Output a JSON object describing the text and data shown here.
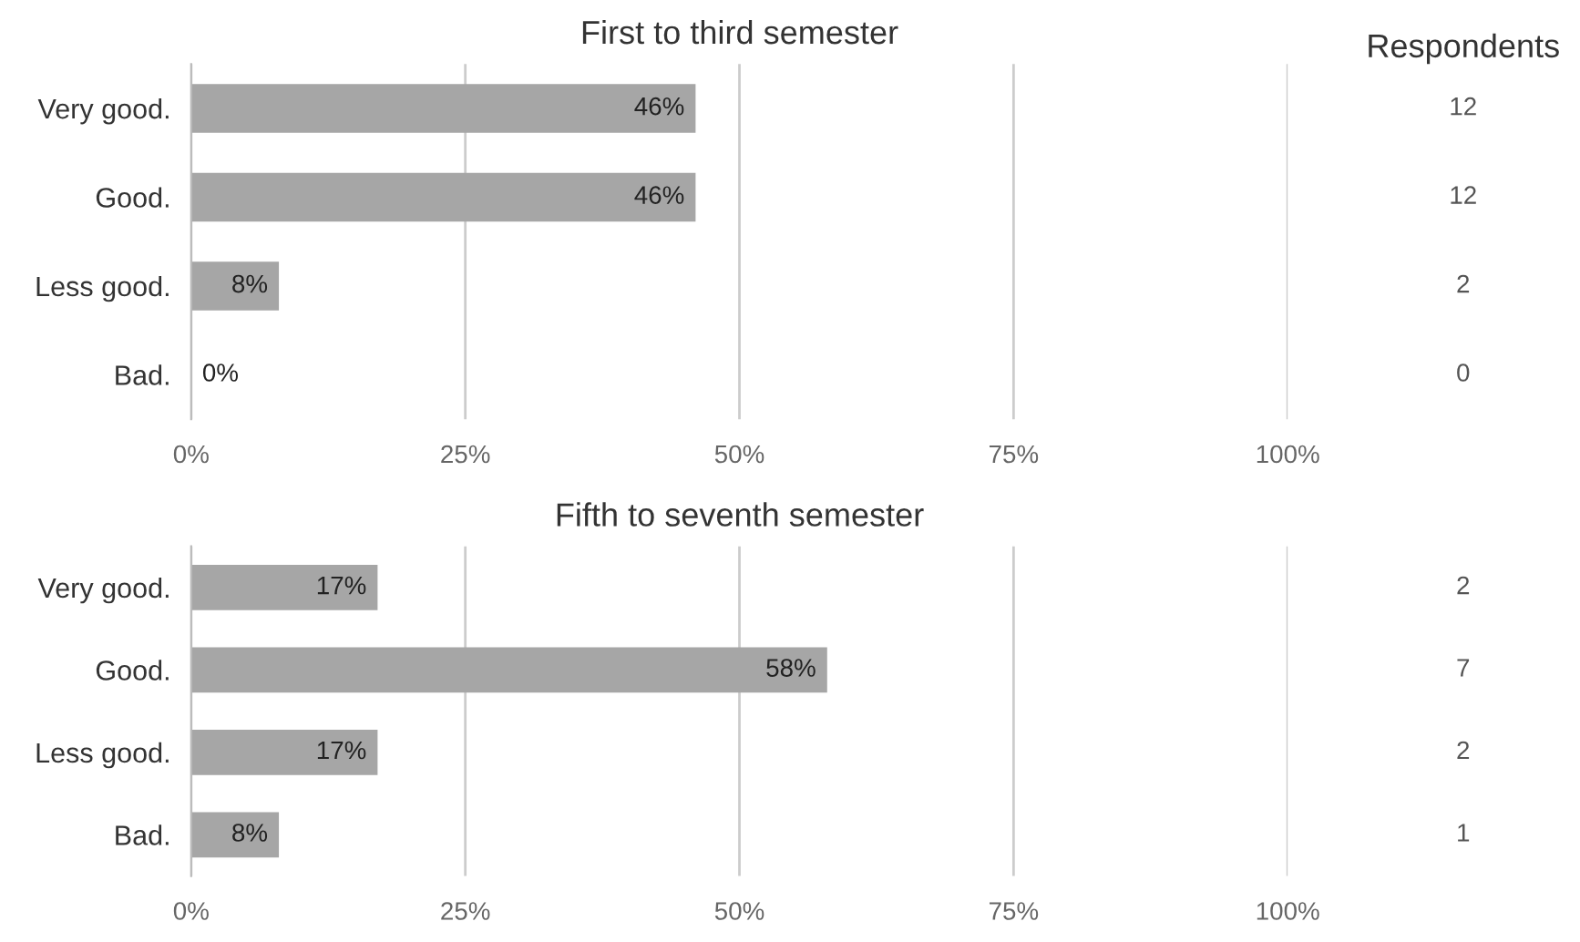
{
  "chart_data": [
    {
      "type": "bar",
      "orientation": "horizontal",
      "title": "First to third semester",
      "categories": [
        "Very good.",
        "Good.",
        "Less good.",
        "Bad."
      ],
      "values": [
        46,
        46,
        8,
        0
      ],
      "value_labels": [
        "46%",
        "46%",
        "8%",
        "0%"
      ],
      "color": "#a6a6a6",
      "xlim": [
        0,
        100
      ],
      "xticks": [
        {
          "value": 0,
          "label": "0%"
        },
        {
          "value": 25,
          "label": "25%"
        },
        {
          "value": 50,
          "label": "50%"
        },
        {
          "value": 75,
          "label": "75%"
        },
        {
          "value": 100,
          "label": "100%"
        }
      ],
      "grid": "x",
      "legend": false,
      "annotations": [
        "Respondents",
        "12",
        "12",
        "2",
        "0"
      ]
    },
    {
      "type": "bar",
      "orientation": "horizontal",
      "title": "Fifth to seventh semester",
      "categories": [
        "Very good.",
        "Good.",
        "Less good.",
        "Bad."
      ],
      "values": [
        17,
        58,
        17,
        8
      ],
      "value_labels": [
        "17%",
        "58%",
        "17%",
        "8%"
      ],
      "color": "#a6a6a6",
      "xlim": [
        0,
        100
      ],
      "xticks": [
        {
          "value": 0,
          "label": "0%"
        },
        {
          "value": 25,
          "label": "25%"
        },
        {
          "value": 50,
          "label": "50%"
        },
        {
          "value": 75,
          "label": "75%"
        },
        {
          "value": 100,
          "label": "100%"
        }
      ],
      "grid": "x",
      "legend": false,
      "annotations": [
        "2",
        "7",
        "2",
        "1"
      ]
    }
  ]
}
